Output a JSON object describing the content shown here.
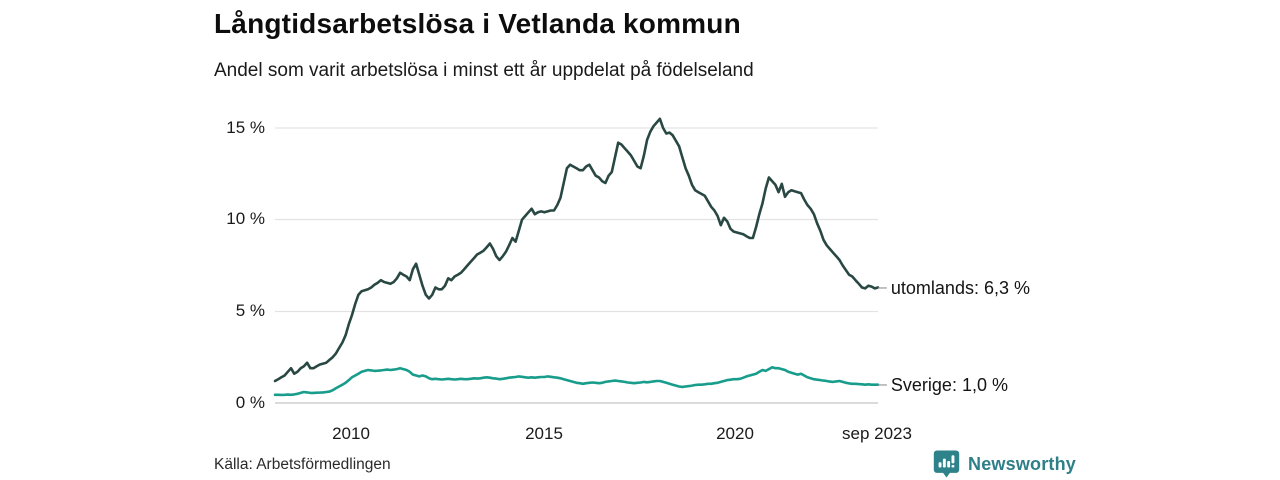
{
  "header": {
    "title": "Långtidsarbetslösa i Vetlanda kommun",
    "subtitle": "Andel som varit arbetslösa i minst ett år uppdelat på födelseland"
  },
  "chart_data": {
    "type": "line",
    "unit": "%",
    "x_start": "2008-01",
    "x_end": "2023-09",
    "frequency": "monthly",
    "ylim": [
      0,
      15
    ],
    "grid": true,
    "y_ticks": [
      15,
      10,
      5,
      0
    ],
    "y_tick_labels": [
      "15 %",
      "10 %",
      "5 %",
      "0 %"
    ],
    "x_tick_labels": [
      "2010",
      "2015",
      "2020",
      "sep 2023"
    ],
    "grid_color": "#e3e3e3",
    "baseline_color": "#cfcfcf",
    "series": [
      {
        "name": "utomlands",
        "label": "utomlands: 6,3 %",
        "last_value": "6,3 %",
        "color": "#2a4843",
        "values": [
          1.2,
          1.3,
          1.4,
          1.5,
          1.7,
          1.9,
          1.6,
          1.7,
          1.9,
          2.0,
          2.2,
          1.9,
          1.9,
          2.0,
          2.1,
          2.15,
          2.2,
          2.35,
          2.5,
          2.7,
          3.0,
          3.3,
          3.7,
          4.3,
          4.8,
          5.4,
          5.9,
          6.1,
          6.15,
          6.2,
          6.3,
          6.45,
          6.55,
          6.7,
          6.6,
          6.55,
          6.5,
          6.6,
          6.8,
          7.1,
          7.0,
          6.9,
          6.7,
          7.3,
          7.6,
          7.0,
          6.4,
          5.9,
          5.7,
          5.9,
          6.3,
          6.2,
          6.2,
          6.4,
          6.8,
          6.7,
          6.9,
          7.0,
          7.1,
          7.3,
          7.5,
          7.7,
          7.9,
          8.1,
          8.2,
          8.3,
          8.5,
          8.7,
          8.4,
          8.0,
          7.8,
          8.0,
          8.25,
          8.6,
          9.0,
          8.8,
          9.4,
          10.0,
          10.2,
          10.4,
          10.6,
          10.3,
          10.4,
          10.45,
          10.4,
          10.45,
          10.5,
          10.5,
          10.8,
          11.2,
          12.0,
          12.8,
          13.0,
          12.9,
          12.8,
          12.7,
          12.7,
          12.9,
          13.0,
          12.7,
          12.4,
          12.3,
          12.1,
          12.0,
          12.4,
          12.6,
          13.4,
          14.2,
          14.1,
          13.9,
          13.7,
          13.5,
          13.2,
          12.9,
          12.8,
          13.5,
          14.35,
          14.8,
          15.1,
          15.3,
          15.5,
          15.0,
          14.7,
          14.75,
          14.6,
          14.3,
          14.0,
          13.4,
          12.8,
          12.4,
          11.9,
          11.6,
          11.5,
          11.4,
          11.3,
          11.0,
          10.7,
          10.5,
          10.2,
          9.7,
          10.1,
          9.9,
          9.5,
          9.35,
          9.3,
          9.25,
          9.2,
          9.1,
          9.0,
          9.0,
          9.6,
          10.3,
          10.9,
          11.7,
          12.3,
          12.1,
          11.9,
          11.5,
          11.95,
          11.25,
          11.5,
          11.6,
          11.55,
          11.5,
          11.45,
          11.1,
          10.8,
          10.6,
          10.3,
          9.8,
          9.4,
          8.9,
          8.6,
          8.4,
          8.2,
          8.0,
          7.8,
          7.5,
          7.25,
          7.0,
          6.9,
          6.7,
          6.5,
          6.3,
          6.25,
          6.4,
          6.35,
          6.25,
          6.3
        ]
      },
      {
        "name": "sverige",
        "label": "Sverige: 1,0 %",
        "last_value": "1,0 %",
        "color": "#189c8b",
        "values": [
          0.45,
          0.45,
          0.44,
          0.45,
          0.46,
          0.45,
          0.47,
          0.5,
          0.55,
          0.6,
          0.58,
          0.55,
          0.55,
          0.56,
          0.57,
          0.58,
          0.6,
          0.62,
          0.7,
          0.8,
          0.9,
          1.0,
          1.1,
          1.25,
          1.4,
          1.5,
          1.6,
          1.7,
          1.75,
          1.8,
          1.78,
          1.75,
          1.76,
          1.78,
          1.8,
          1.82,
          1.8,
          1.82,
          1.85,
          1.9,
          1.85,
          1.8,
          1.7,
          1.55,
          1.5,
          1.45,
          1.5,
          1.45,
          1.35,
          1.3,
          1.32,
          1.3,
          1.28,
          1.3,
          1.32,
          1.3,
          1.28,
          1.3,
          1.32,
          1.3,
          1.3,
          1.32,
          1.35,
          1.33,
          1.35,
          1.38,
          1.4,
          1.38,
          1.35,
          1.33,
          1.3,
          1.32,
          1.35,
          1.38,
          1.4,
          1.42,
          1.45,
          1.43,
          1.4,
          1.38,
          1.4,
          1.38,
          1.4,
          1.42,
          1.42,
          1.45,
          1.43,
          1.4,
          1.38,
          1.35,
          1.3,
          1.25,
          1.2,
          1.15,
          1.1,
          1.08,
          1.05,
          1.08,
          1.1,
          1.12,
          1.1,
          1.08,
          1.1,
          1.15,
          1.18,
          1.2,
          1.22,
          1.2,
          1.18,
          1.15,
          1.12,
          1.1,
          1.08,
          1.1,
          1.12,
          1.15,
          1.13,
          1.15,
          1.18,
          1.2,
          1.2,
          1.15,
          1.1,
          1.05,
          1.0,
          0.95,
          0.9,
          0.88,
          0.9,
          0.92,
          0.95,
          0.98,
          1.0,
          1.0,
          1.02,
          1.05,
          1.05,
          1.08,
          1.1,
          1.15,
          1.2,
          1.25,
          1.27,
          1.3,
          1.3,
          1.32,
          1.38,
          1.45,
          1.5,
          1.55,
          1.6,
          1.7,
          1.8,
          1.75,
          1.85,
          1.95,
          1.9,
          1.9,
          1.85,
          1.8,
          1.7,
          1.65,
          1.6,
          1.55,
          1.6,
          1.5,
          1.4,
          1.35,
          1.3,
          1.27,
          1.25,
          1.22,
          1.2,
          1.17,
          1.15,
          1.18,
          1.2,
          1.15,
          1.1,
          1.07,
          1.05,
          1.05,
          1.03,
          1.02,
          1.0,
          1.02,
          1.0,
          1.0,
          1.0
        ]
      }
    ],
    "end_label_dash": "–"
  },
  "footer": {
    "source": "Källa: Arbetsförmedlingen",
    "brand": "Newsworthy",
    "brand_color": "#2e7f87",
    "brand_icon_color": "#2e8289"
  }
}
